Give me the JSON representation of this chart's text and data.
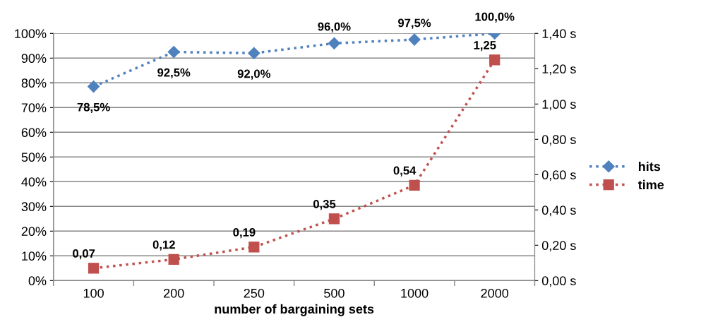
{
  "chart_data": {
    "type": "line",
    "xlabel": "number of bargaining sets",
    "categories": [
      "100",
      "200",
      "250",
      "500",
      "1000",
      "2000"
    ],
    "series": [
      {
        "name": "hits",
        "color": "#4f81bd",
        "marker": "diamond",
        "values": [
          78.5,
          92.5,
          92.0,
          96.0,
          97.5,
          100.0
        ],
        "value_labels": [
          "78,5%",
          "92,5%",
          "92,0%",
          "96,0%",
          "97,5%",
          "100,0%"
        ]
      },
      {
        "name": "time",
        "color": "#c0504d",
        "marker": "square",
        "axis": "y2",
        "values": [
          0.07,
          0.12,
          0.19,
          0.35,
          0.54,
          1.25
        ],
        "value_labels": [
          "0,07",
          "0,12",
          "0,19",
          "0,35",
          "0,54",
          "1,25"
        ]
      }
    ],
    "ylim": [
      0,
      100
    ],
    "yticks": [
      {
        "value": 0,
        "label": "0%"
      },
      {
        "value": 10,
        "label": "10%"
      },
      {
        "value": 20,
        "label": "20%"
      },
      {
        "value": 30,
        "label": "30%"
      },
      {
        "value": 40,
        "label": "40%"
      },
      {
        "value": 50,
        "label": "50%"
      },
      {
        "value": 60,
        "label": "60%"
      },
      {
        "value": 70,
        "label": "70%"
      },
      {
        "value": 80,
        "label": "80%"
      },
      {
        "value": 90,
        "label": "90%"
      },
      {
        "value": 100,
        "label": "100%"
      }
    ],
    "y2lim": [
      0,
      1.4
    ],
    "y2ticks": [
      {
        "value": 0,
        "label": "0,00 s"
      },
      {
        "value": 0.2,
        "label": "0,20 s"
      },
      {
        "value": 0.4,
        "label": "0,40 s"
      },
      {
        "value": 0.6,
        "label": "0,60 s"
      },
      {
        "value": 0.8,
        "label": "0,80 s"
      },
      {
        "value": 1.0,
        "label": "1,00 s"
      },
      {
        "value": 1.2,
        "label": "1,20 s"
      },
      {
        "value": 1.4,
        "label": "1,40 s"
      }
    ],
    "grid": "y",
    "legend": "right",
    "line_style": "dotted"
  }
}
